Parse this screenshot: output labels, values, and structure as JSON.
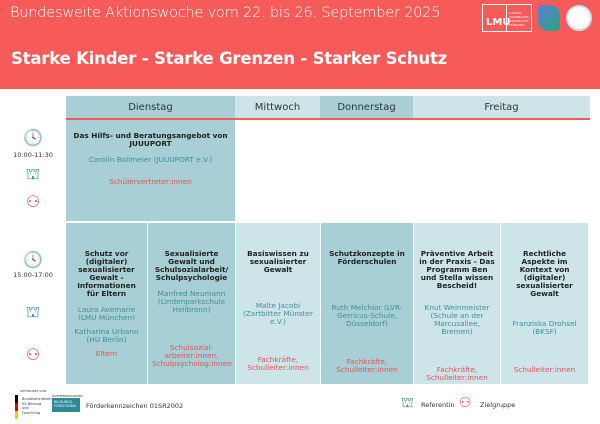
{
  "header": {
    "subtitle": "Bundesweite Aktionswoche vom 22. bis 26. September 2025",
    "title": "Starke Kinder - Starke Grenzen - Starker Schutz",
    "logo_lmu": "LMU",
    "logo_lmu_text": "LUDWIG-MAXIMILIANS-UNIVERSITÄT MÜNCHEN"
  },
  "days": [
    "Dienstag",
    "Mittwoch",
    "Donnerstag",
    "Freitag"
  ],
  "slots": [
    {
      "time": "10:00-11:30",
      "sessions": [
        {
          "title": "Das Hilfs- und Beratungsangebot von JUUUPORT",
          "speakers": [
            "Carolin Bollmeier (JUUUPORT e.V.)"
          ],
          "target": "Schülervertreter:innen"
        }
      ]
    },
    {
      "time": "15:00-17:00",
      "sessions": [
        {
          "title": "Schutz vor (digitaler) sexualisierter Gewalt - Informationen für Eltern",
          "speakers": [
            "Laura Avemarie (LMU München)",
            "Katharina Urbann (HU Berlin)"
          ],
          "target": "Eltern"
        },
        {
          "title": "Sexualisierte Gewalt und Schulsozialarbeit/ Schulpsychologie",
          "speakers": [
            "Manfred Neumann (Lindenparkschule Heilbronn)"
          ],
          "target": "Schulsozial-arbeiter:innen, Schulpsycholog:innen"
        },
        {
          "title": "Basiswissen zu sexualisierter Gewalt",
          "speakers": [
            "Malte Jacobi (Zartbitter Münster e.V.)"
          ],
          "target": "Fachkräfte, Schulleiter:innen"
        },
        {
          "title": "Schutzkonzepte in Förderschulen",
          "speakers": [
            "Ruth Melchior (LVR-Gerricus-Schule, Düsseldorf)"
          ],
          "target": "Fachkräfte, Schulleiter:innen"
        },
        {
          "title": "Präventive Arbeit in der Praxis - Das Programm Ben und Stella wissen Bescheid!",
          "speakers": [
            "Knut Weinmeister (Schule an der Marcusallee, Bremen)"
          ],
          "target": "Fachkräfte, Schulleiter:innen"
        },
        {
          "title": "Rechtliche Aspekte im Kontext von (digitaler) sexualisierter Gewalt",
          "speakers": [
            "Franziska Drohsel (BKSF)"
          ],
          "target": "Schulleiter:innen"
        }
      ]
    }
  ],
  "footer": {
    "funder_line": "GEFÖRDERT VOM",
    "ministry": "Bundesministerium für Bildung und Forschung",
    "program_top": "RAHMENPROGRAMM",
    "program": "BILDUNGS-FORSCHUNG",
    "grant": "Förderkennzeichen 01SR2002",
    "legend_speaker": "Referentin",
    "legend_target": "Zielgruppe"
  },
  "colors": {
    "brand_red": "#f65b59",
    "teal_dark": "#a7cfd5",
    "teal_light": "#cde5e9",
    "speaker_text": "#3f8f99",
    "target_text": "#e0525a"
  }
}
